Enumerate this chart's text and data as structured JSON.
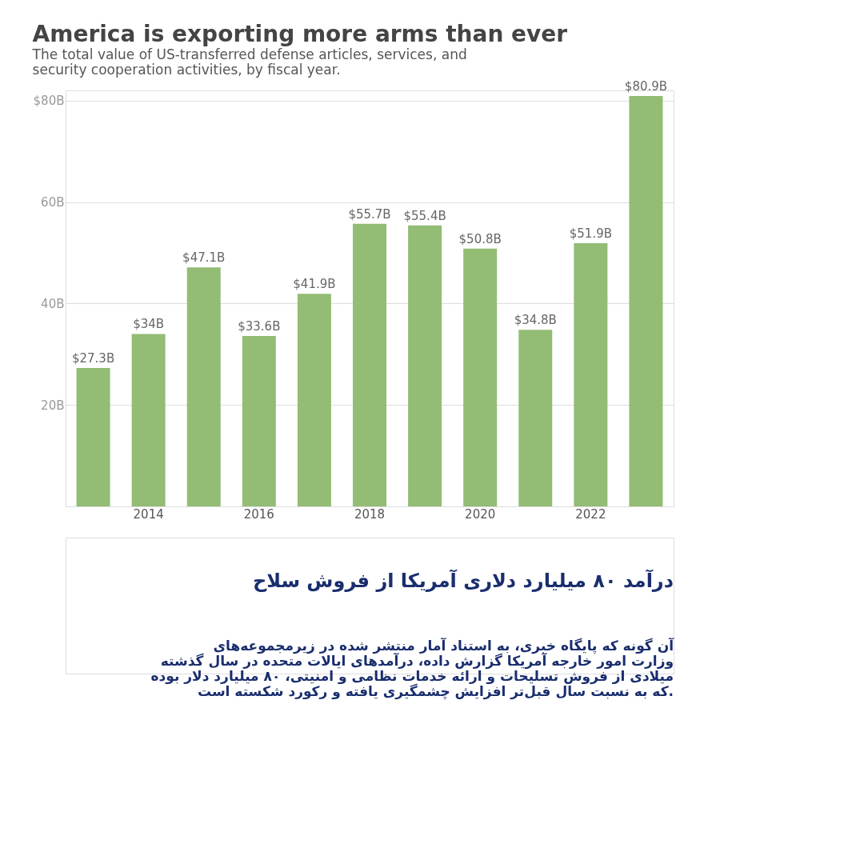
{
  "chart_data": {
    "type": "bar",
    "title": "America is exporting more arms than ever",
    "subtitle": "The total value of US-transferred defense articles, services, and security cooperation activities, by fiscal year.",
    "categories": [
      null,
      "2014",
      null,
      "2016",
      null,
      "2018",
      null,
      "2020",
      null,
      "2022",
      null
    ],
    "series": [
      {
        "color": "#93bc74",
        "values": [
          27.3,
          34,
          47.1,
          33.6,
          41.9,
          55.7,
          55.4,
          50.8,
          34.8,
          51.9,
          80.9
        ],
        "value_labels": [
          "$27.3B",
          "$34B",
          "$47.1B",
          "$33.6B",
          "$41.9B",
          "$55.7B",
          "$55.4B",
          "$50.8B",
          "$34.8B",
          "$51.9B",
          "$80.9B"
        ]
      }
    ],
    "ylim": [
      0,
      82
    ],
    "yticks": [
      {
        "value": 20,
        "label": "20B"
      },
      {
        "value": 40,
        "label": "40B"
      },
      {
        "value": 60,
        "label": "60B"
      },
      {
        "value": 80,
        "label": "$80B"
      }
    ],
    "grid": "y",
    "annotations": [
      "درآمد ۸۰ میلیارد دلاری آمریکا از فروش سلاح",
      "آن گونه که پایگاه خبری، به استناد آمار منتشر شده در زیرمجموعه‌های\nوزارت امور خارجه آمریکا گزارش داده، درآمدهای ایالات متحده در سال گذشته\nمیلادی از فروش تسلیحات و ارائه خدمات نظامی و امنیتی، ۸۰ میلیارد دلار بوده\nکه به نسبت سال قبل‌تر افزایش چشمگیری یافته و رکورد شکسته است."
    ]
  }
}
